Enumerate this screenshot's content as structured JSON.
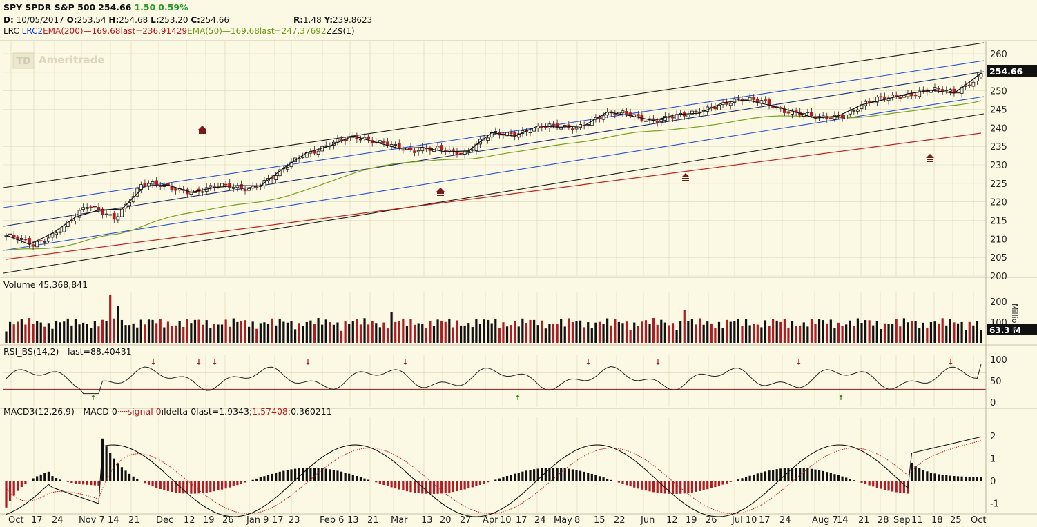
{
  "header": {
    "symbol": "SPY",
    "name": "SPDR S&P 500",
    "last": "254.66",
    "change": "1.50",
    "change_pct": "0.59%",
    "date_label": "D:",
    "date": "10/05/2017",
    "open_label": "O:",
    "open": "253.54",
    "high_label": "H:",
    "high": "254.68",
    "low_label": "L:",
    "low": "253.20",
    "close_label": "C:",
    "close": "254.66",
    "r_label": "R:",
    "r": "1.48",
    "y_label": "Y:",
    "y": "239.8623"
  },
  "studies_line": {
    "lrc": "LRC",
    "lrc2": "LRC2",
    "ema200": "EMA(200)",
    "ema200_val": "169.68",
    "ema200_last": "last=236.91429",
    "ema50": "EMA(50)",
    "ema50_val": "169.68",
    "ema50_last": "last=247.37692",
    "zz": "ZZ$(1)"
  },
  "watermark": {
    "td": "TD",
    "text": "Ameritrade"
  },
  "colors": {
    "background": "#fbf8e4",
    "grid": "#dcd7b8",
    "up": "#111111",
    "down": "#b01c24",
    "ema200": "#c02020",
    "ema50": "#7aa020",
    "lrc_outer": "#1a1a1a",
    "lrc_inner": "#2a4fd0",
    "arrow": "#7a1a18"
  },
  "price_panel": {
    "yticks": [
      "260",
      "255",
      "250",
      "245",
      "240",
      "235",
      "230",
      "225",
      "220",
      "215",
      "210",
      "205",
      "200"
    ],
    "last_tag": "254.66"
  },
  "volume_panel": {
    "label": "Volume",
    "value": "45,368,841",
    "yticks": [
      "200",
      "100"
    ],
    "unit": "Millions",
    "last_tag": "63.3 M"
  },
  "rsi_panel": {
    "label": "RSI_BS(14,2)",
    "last": "last=88.40431",
    "yticks": [
      "100",
      "50",
      "0"
    ]
  },
  "macd_panel": {
    "label": "MACD3(12,26,9)",
    "macd": "MACD",
    "macd_val": "0",
    "signal": "signal",
    "signal_val": "0",
    "delta": "delta",
    "delta_val": "0",
    "last": "last=1.9343;",
    "last_signal": "1.57408;",
    "last_delta": "0.360211",
    "yticks": [
      "2",
      "1",
      "0",
      "-1"
    ]
  },
  "chart_data": {
    "type": "candlestick",
    "title": "SPY SPDR S&P 500",
    "x_axis_labels": [
      "Oct",
      "17",
      "24",
      "Nov 7",
      "14",
      "21",
      "Dec",
      "12",
      "19",
      "26",
      "Jan 9",
      "17",
      "23",
      "Feb 6",
      "13",
      "21",
      "Mar",
      "13",
      "20",
      "27",
      "Apr",
      "10",
      "17",
      "24",
      "May",
      "8",
      "15",
      "22",
      "Jun",
      "12",
      "19",
      "26",
      "Jul 10",
      "17",
      "24",
      "Aug 7",
      "14",
      "21",
      "28",
      "Sep",
      "11",
      "18",
      "25",
      "Oct"
    ],
    "price_ylim": [
      200,
      263
    ],
    "close_anchors": [
      {
        "date": "Oct",
        "close": 211
      },
      {
        "date": "Nov 7",
        "close": 208
      },
      {
        "date": "14",
        "close": 213
      },
      {
        "date": "21",
        "close": 218.5
      },
      {
        "date": "Dec",
        "close": 216
      },
      {
        "date": "12",
        "close": 224.5
      },
      {
        "date": "19",
        "close": 224
      },
      {
        "date": "26",
        "close": 223
      },
      {
        "date": "Jan 9",
        "close": 224
      },
      {
        "date": "23",
        "close": 224
      },
      {
        "date": "Feb6",
        "close": 227
      },
      {
        "date": "13",
        "close": 233
      },
      {
        "date": "21",
        "close": 236
      },
      {
        "date": "Mar",
        "close": 237
      },
      {
        "date": "13",
        "close": 236.5
      },
      {
        "date": "27",
        "close": 233
      },
      {
        "date": "Apr",
        "close": 235
      },
      {
        "date": "17",
        "close": 233
      },
      {
        "date": "24",
        "close": 238.5
      },
      {
        "date": "May",
        "close": 239
      },
      {
        "date": "15",
        "close": 240
      },
      {
        "date": "22",
        "close": 240.5
      },
      {
        "date": "Jun",
        "close": 243
      },
      {
        "date": "19",
        "close": 244
      },
      {
        "date": "26",
        "close": 242
      },
      {
        "date": "Jul 10",
        "close": 243
      },
      {
        "date": "17",
        "close": 246
      },
      {
        "date": "24",
        "close": 247
      },
      {
        "date": "Aug 7",
        "close": 247.5
      },
      {
        "date": "14",
        "close": 244
      },
      {
        "date": "21",
        "close": 242.5
      },
      {
        "date": "28",
        "close": 244
      },
      {
        "date": "Sep",
        "close": 247
      },
      {
        "date": "11",
        "close": 249
      },
      {
        "date": "18",
        "close": 250
      },
      {
        "date": "25",
        "close": 249.5
      },
      {
        "date": "Oct",
        "close": 254.66
      }
    ],
    "ema200_last": 236.91429,
    "ema50_last": 247.37692,
    "volume_last_millions": 63.3,
    "rsi_last": 88.40431,
    "rsi_levels": [
      70,
      30
    ],
    "macd_last": 1.9343,
    "signal_last": 1.57408,
    "delta_last": 0.360211
  }
}
